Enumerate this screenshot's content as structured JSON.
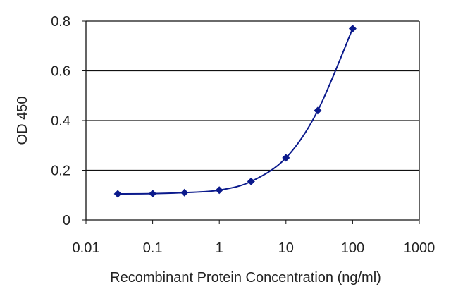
{
  "chart_data": {
    "type": "line",
    "xlabel": "Recombinant Protein Concentration (ng/ml)",
    "ylabel": "OD 450",
    "x_scale": "log",
    "xlim": [
      0.01,
      1000
    ],
    "ylim": [
      0,
      0.8
    ],
    "x_ticks": [
      {
        "value": 0.01,
        "label": "0.01"
      },
      {
        "value": 0.1,
        "label": "0.1"
      },
      {
        "value": 1,
        "label": "1"
      },
      {
        "value": 10,
        "label": "10"
      },
      {
        "value": 100,
        "label": "100"
      },
      {
        "value": 1000,
        "label": "1000"
      }
    ],
    "y_ticks": [
      {
        "value": 0,
        "label": "0"
      },
      {
        "value": 0.2,
        "label": "0.2"
      },
      {
        "value": 0.4,
        "label": "0.4"
      },
      {
        "value": 0.6,
        "label": "0.6"
      },
      {
        "value": 0.8,
        "label": "0.8"
      }
    ],
    "grid": "horizontal",
    "series": [
      {
        "x": [
          0.03,
          0.1,
          0.3,
          1,
          3,
          10,
          30,
          100
        ],
        "y": [
          0.105,
          0.106,
          0.11,
          0.12,
          0.155,
          0.25,
          0.44,
          0.77
        ],
        "marker": "diamond"
      }
    ],
    "colors": {
      "series": "#0b1a8c",
      "grid": "#111111",
      "axis": "#111111",
      "text": "#222222"
    }
  }
}
